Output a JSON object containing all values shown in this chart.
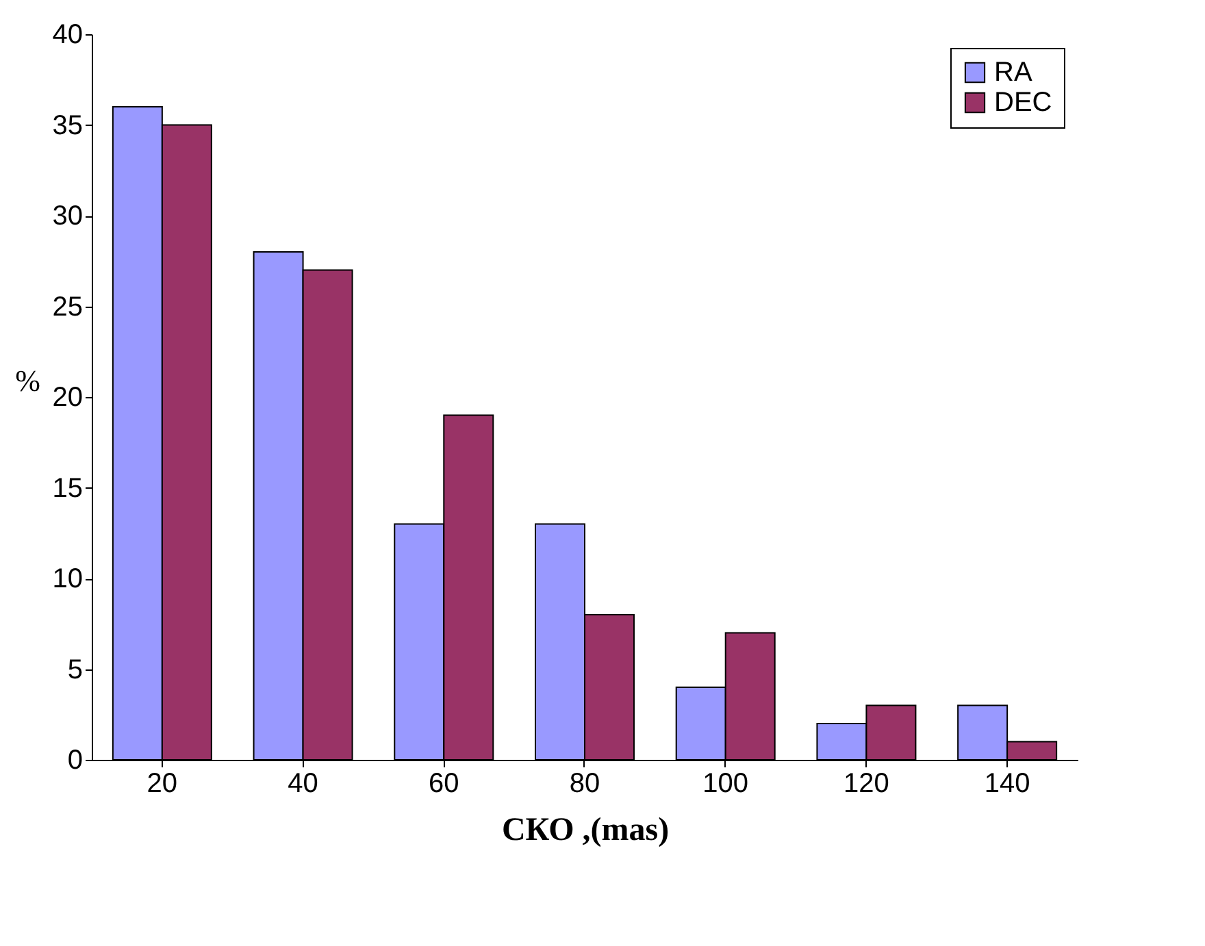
{
  "chart_data": {
    "type": "bar",
    "xlabel": "СКО ,(mas)",
    "ylabel": "%",
    "categories": [
      "20",
      "40",
      "60",
      "80",
      "100",
      "120",
      "140"
    ],
    "series": [
      {
        "name": "RA",
        "color": "#9999ff",
        "values": [
          36,
          28,
          13,
          13,
          4,
          2,
          3
        ]
      },
      {
        "name": "DEC",
        "color": "#993366",
        "values": [
          35,
          27,
          19,
          8,
          7,
          3,
          1
        ]
      }
    ],
    "ylim": [
      0,
      40
    ],
    "yticks": [
      0,
      5,
      10,
      15,
      20,
      25,
      30,
      35,
      40
    ],
    "legend": "top right"
  }
}
